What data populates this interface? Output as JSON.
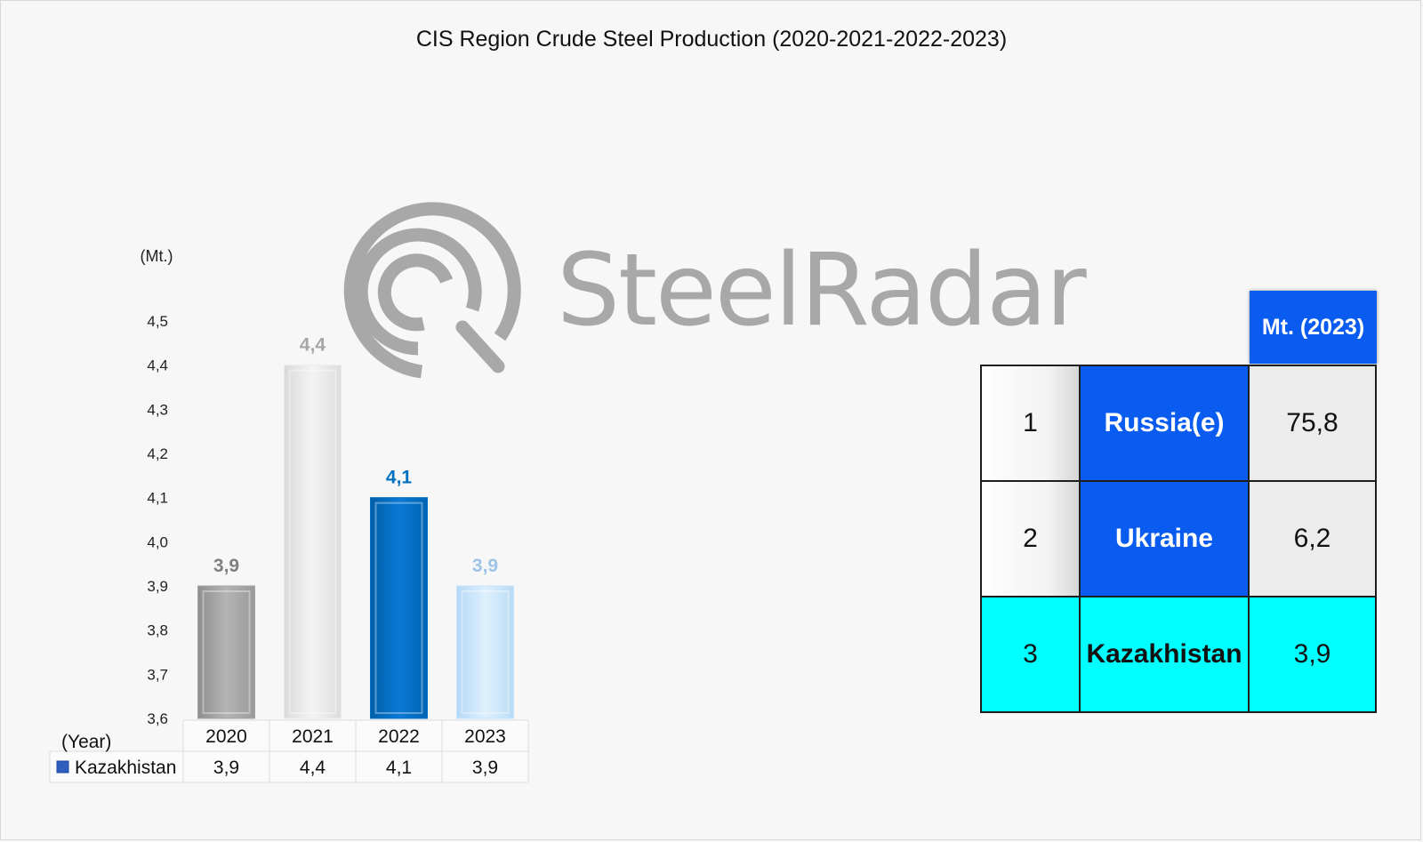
{
  "title": "CIS Region Crude Steel Production (2020-2021-2022-2023)",
  "watermark": "SteelRadar",
  "chart_data": {
    "type": "bar",
    "unit_label": "(Mt.)",
    "x_axis_label": "(Year)",
    "categories": [
      "2020",
      "2021",
      "2022",
      "2023"
    ],
    "series": [
      {
        "name": "Kazakhistan",
        "values": [
          3.9,
          4.4,
          4.1,
          3.9
        ],
        "value_labels": [
          "3,9",
          "4,4",
          "4,1",
          "3,9"
        ]
      }
    ],
    "ylim": [
      3.6,
      4.5
    ],
    "y_ticks": [
      "3,6",
      "3,7",
      "3,8",
      "3,9",
      "4,0",
      "4,1",
      "4,2",
      "4,3",
      "4,4",
      "4,5"
    ],
    "grid": false,
    "bar_colors": [
      "#a6a6a6",
      "#ebebeb",
      "#0070c0",
      "#c5e3fb"
    ],
    "label_colors": [
      "#808080",
      "#a6a6a6",
      "#0070c0",
      "#9dc3e6"
    ],
    "legend_color": "#2e5fbf"
  },
  "ranking_table": {
    "header": "Mt. (2023)",
    "rows": [
      {
        "rank": "1",
        "country": "Russia(e)",
        "value": "75,8"
      },
      {
        "rank": "2",
        "country": "Ukraine",
        "value": "6,2"
      },
      {
        "rank": "3",
        "country": "Kazakhistan",
        "value": "3,9"
      }
    ],
    "highlight_color": "#00ffff",
    "accent_color": "#0a5cf0"
  }
}
